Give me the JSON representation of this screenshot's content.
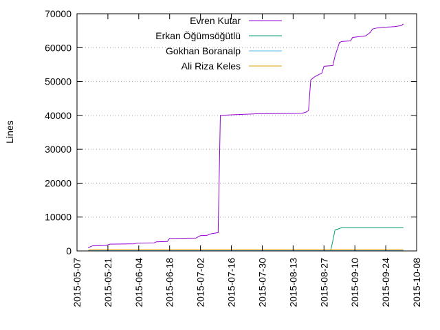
{
  "chart_data": {
    "type": "line",
    "title": "",
    "xlabel": "",
    "ylabel": "Lines",
    "ylim": [
      0,
      70000
    ],
    "y_ticks": [
      0,
      10000,
      20000,
      30000,
      40000,
      50000,
      60000,
      70000
    ],
    "x_tick_labels": [
      "2015-05-07",
      "2015-05-21",
      "2015-06-04",
      "2015-06-18",
      "2015-07-02",
      "2015-07-16",
      "2015-07-30",
      "2015-08-13",
      "2015-08-27",
      "2015-09-10",
      "2015-09-24",
      "2015-10-08"
    ],
    "xlim": [
      "2015-05-07",
      "2015-10-08"
    ],
    "grid": "horizontal dotted",
    "legend_position": "top-right",
    "series": [
      {
        "name": "Evren Kutar",
        "color": "#9400d3",
        "points": [
          [
            "2015-05-12",
            1000
          ],
          [
            "2015-05-13",
            1200
          ],
          [
            "2015-05-14",
            1500
          ],
          [
            "2015-05-20",
            1600
          ],
          [
            "2015-05-21",
            1800
          ],
          [
            "2015-05-22",
            2000
          ],
          [
            "2015-06-02",
            2100
          ],
          [
            "2015-06-03",
            2300
          ],
          [
            "2015-06-11",
            2400
          ],
          [
            "2015-06-12",
            2700
          ],
          [
            "2015-06-17",
            2800
          ],
          [
            "2015-06-18",
            3700
          ],
          [
            "2015-06-30",
            3800
          ],
          [
            "2015-07-01",
            4200
          ],
          [
            "2015-07-02",
            4500
          ],
          [
            "2015-07-05",
            4600
          ],
          [
            "2015-07-06",
            4900
          ],
          [
            "2015-07-07",
            5100
          ],
          [
            "2015-07-10",
            5400
          ],
          [
            "2015-07-11",
            40000
          ],
          [
            "2015-07-17",
            40200
          ],
          [
            "2015-07-25",
            40400
          ],
          [
            "2015-07-28",
            40500
          ],
          [
            "2015-08-17",
            40600
          ],
          [
            "2015-08-19",
            41000
          ],
          [
            "2015-08-20",
            41500
          ],
          [
            "2015-08-21",
            50500
          ],
          [
            "2015-08-23",
            51500
          ],
          [
            "2015-08-26",
            52500
          ],
          [
            "2015-08-27",
            54500
          ],
          [
            "2015-08-31",
            54700
          ],
          [
            "2015-09-01",
            57500
          ],
          [
            "2015-09-03",
            61500
          ],
          [
            "2015-09-04",
            61800
          ],
          [
            "2015-09-08",
            62000
          ],
          [
            "2015-09-09",
            63000
          ],
          [
            "2015-09-15",
            63500
          ],
          [
            "2015-09-17",
            64500
          ],
          [
            "2015-09-18",
            65500
          ],
          [
            "2015-09-20",
            65800
          ],
          [
            "2015-09-23",
            66000
          ],
          [
            "2015-09-28",
            66200
          ],
          [
            "2015-10-01",
            66500
          ],
          [
            "2015-10-02",
            67000
          ]
        ]
      },
      {
        "name": "Erkan Öğümsöğütlü",
        "color": "#009e73",
        "points": [
          [
            "2015-08-30",
            0
          ],
          [
            "2015-08-31",
            3000
          ],
          [
            "2015-09-01",
            6200
          ],
          [
            "2015-09-03",
            6600
          ],
          [
            "2015-09-04",
            6900
          ],
          [
            "2015-10-02",
            6900
          ]
        ]
      },
      {
        "name": "Gokhan Boranalp",
        "color": "#56b4e9",
        "points": [
          [
            "2015-05-12",
            100
          ],
          [
            "2015-10-02",
            100
          ]
        ]
      },
      {
        "name": "Ali Riza Keles",
        "color": "#e69f00",
        "points": [
          [
            "2015-05-12",
            0
          ],
          [
            "2015-05-13",
            400
          ],
          [
            "2015-10-02",
            400
          ]
        ]
      }
    ]
  }
}
